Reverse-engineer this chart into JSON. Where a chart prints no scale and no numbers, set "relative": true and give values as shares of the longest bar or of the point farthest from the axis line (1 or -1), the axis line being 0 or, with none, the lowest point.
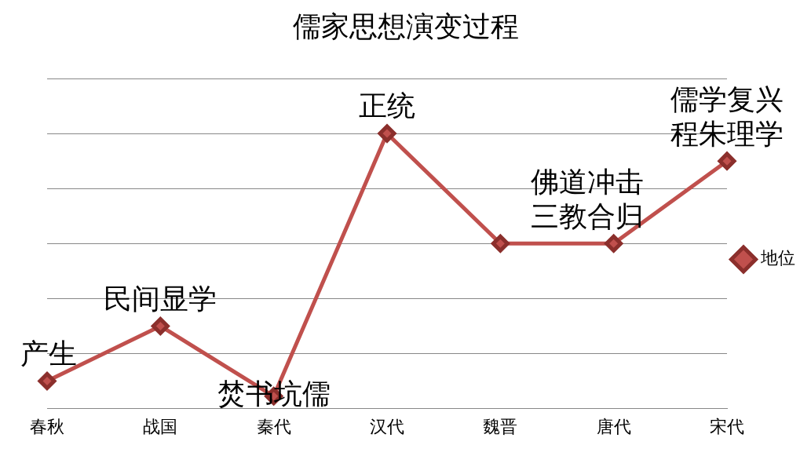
{
  "chart_data": {
    "type": "line",
    "title": "儒家思想演变过程",
    "categories": [
      "春秋",
      "战国",
      "秦代",
      "汉代",
      "魏晋",
      "唐代",
      "宋代"
    ],
    "series": [
      {
        "name": "地位",
        "color": "#c0504d",
        "values": [
          0.1,
          0.3,
          0.045,
          1,
          0.6,
          0.6,
          0.9
        ]
      }
    ],
    "relative": true,
    "grid": "y",
    "legend": "right",
    "marker": "diamond",
    "line_style": "solid",
    "annotations": [
      {
        "text": "产生",
        "x": "春秋",
        "y": 0.1
      },
      {
        "text": "民间显学",
        "x": "战国",
        "y": 0.3
      },
      {
        "text": "焚书坑儒",
        "x": "秦代",
        "y": 0.045
      },
      {
        "text": "正统",
        "x": "汉代",
        "y": 1
      },
      {
        "text": "佛道冲击",
        "x": "唐代",
        "y": 0.6
      },
      {
        "text": "三教合归",
        "x": "唐代",
        "y": 0.6
      },
      {
        "text": "儒学复兴",
        "x": "宋代",
        "y": 0.9
      },
      {
        "text": "程朱理学",
        "x": "宋代",
        "y": 0.9
      }
    ]
  }
}
